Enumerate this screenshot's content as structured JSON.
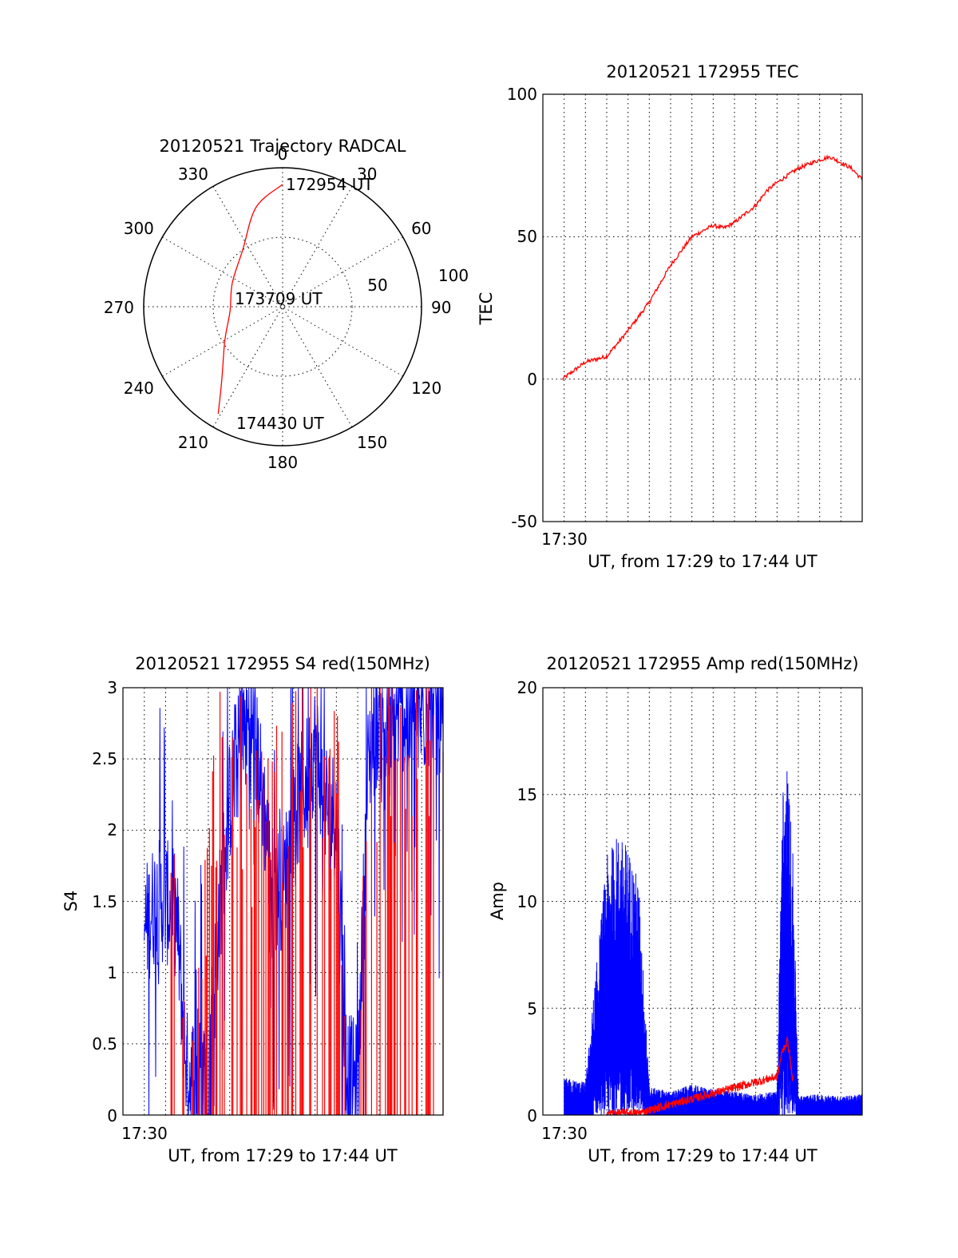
{
  "colors": {
    "primary": "#ff0000",
    "secondary": "#0000ff",
    "axis": "#000000"
  },
  "chart_data": [
    {
      "type": "polar",
      "title": "20120521 Trajectory RADCAL",
      "azimuth_labels": [
        "0",
        "30",
        "60",
        "90",
        "120",
        "150",
        "180",
        "210",
        "240",
        "270",
        "300",
        "330"
      ],
      "radial_labels": [
        "50",
        "100"
      ],
      "rlim": [
        0,
        100
      ],
      "grid": true,
      "series": [
        {
          "color": "#ff0000",
          "points": [
            {
              "az": 0,
              "r": 88
            },
            {
              "az": 345,
              "r": 74
            },
            {
              "az": 325,
              "r": 50
            },
            {
              "az": 295,
              "r": 40
            },
            {
              "az": 265,
              "r": 38
            },
            {
              "az": 240,
              "r": 48
            },
            {
              "az": 220,
              "r": 68
            },
            {
              "az": 211,
              "r": 90
            }
          ]
        }
      ],
      "annotations": [
        {
          "text": "172954 UT",
          "az": 0,
          "r": 88
        },
        {
          "text": "173709 UT",
          "az": 0,
          "r": 0
        },
        {
          "text": "174430 UT",
          "az": 211,
          "r": 90
        }
      ]
    },
    {
      "type": "line",
      "title": "20120521 172955 TEC",
      "xlabel": "UT, from 17:29 to 17:44 UT",
      "ylabel": "TEC",
      "xlim": [
        "17:29",
        "17:44"
      ],
      "ylim": [
        -50,
        100
      ],
      "yticks": [
        "-50",
        "0",
        "50",
        "100"
      ],
      "xticks": [
        "17:30"
      ],
      "grid": true,
      "series": [
        {
          "color": "#ff0000",
          "x": [
            "17:29:55",
            "17:31:00",
            "17:32:00",
            "17:33:00",
            "17:34:00",
            "17:35:00",
            "17:36:00",
            "17:37:00",
            "17:37:30",
            "17:38:00",
            "17:38:30",
            "17:39:00",
            "17:39:30",
            "17:40:00",
            "17:41:00",
            "17:42:00",
            "17:42:30",
            "17:43:00",
            "17:43:30",
            "17:44:00"
          ],
          "values": [
            0,
            6,
            8,
            17,
            27,
            40,
            50,
            54,
            53,
            55,
            58,
            61,
            66,
            69,
            74,
            77,
            78,
            76,
            74,
            70
          ]
        }
      ]
    },
    {
      "type": "line",
      "title": "20120521 172955 S4 red(150MHz)",
      "xlabel": "UT, from 17:29 to 17:44 UT",
      "ylabel": "S4",
      "xlim": [
        "17:29",
        "17:44"
      ],
      "ylim": [
        0,
        3
      ],
      "yticks": [
        "0",
        "0.5",
        "1",
        "1.5",
        "2",
        "2.5",
        "3"
      ],
      "xticks": [
        "17:30"
      ],
      "grid": true,
      "series": [
        {
          "color": "#0000ff",
          "x": [
            "17:30:00",
            "17:30:30",
            "17:31:00",
            "17:31:30",
            "17:32:00",
            "17:32:30",
            "17:33:00",
            "17:33:30",
            "17:34:00",
            "17:34:30",
            "17:35:00",
            "17:35:30",
            "17:36:00",
            "17:36:30",
            "17:37:00",
            "17:37:30",
            "17:38:00",
            "17:38:30",
            "17:39:00",
            "17:39:30",
            "17:40:00",
            "17:40:30",
            "17:41:00",
            "17:41:30",
            "17:42:00",
            "17:42:30",
            "17:43:00",
            "17:43:30",
            "17:44:00"
          ],
          "values": [
            1.3,
            1.5,
            1.5,
            1.4,
            0.3,
            0.25,
            0.27,
            1.4,
            2.2,
            2.6,
            2.8,
            2.3,
            1.6,
            1.6,
            2.1,
            2.3,
            2.6,
            2.2,
            2.1,
            0.3,
            0.2,
            2.5,
            2.8,
            2.6,
            2.9,
            2.7,
            2.8,
            2.9,
            2.6
          ]
        },
        {
          "color": "#ff0000",
          "x": [
            "17:31:00",
            "17:31:30",
            "17:32:00",
            "17:33:30",
            "17:34:00",
            "17:34:30",
            "17:35:00",
            "17:35:30",
            "17:36:00",
            "17:36:30",
            "17:37:00",
            "17:37:30",
            "17:38:00",
            "17:38:30",
            "17:39:00",
            "17:39:30",
            "17:40:00",
            "17:40:30",
            "17:41:00",
            "17:41:30",
            "17:42:00",
            "17:42:30",
            "17:43:00",
            "17:43:30",
            "17:44:00"
          ],
          "values": [
            1.2,
            2.4,
            0.3,
            2.9,
            2.7,
            3.0,
            2.0,
            2.8,
            3.0,
            2.4,
            2.7,
            3.0,
            3.0,
            2.3,
            3.0,
            0.15,
            0.2,
            2.9,
            3.0,
            2.8,
            3.0,
            2.9,
            3.0,
            2.8,
            3.0
          ]
        }
      ]
    },
    {
      "type": "line",
      "title": "20120521 172955 Amp red(150MHz)",
      "xlabel": "UT, from 17:29 to 17:44 UT",
      "ylabel": "Amp",
      "xlim": [
        "17:29",
        "17:44"
      ],
      "ylim": [
        0,
        20
      ],
      "yticks": [
        "0",
        "5",
        "10",
        "15",
        "20"
      ],
      "xticks": [
        "17:30"
      ],
      "grid": true,
      "series": [
        {
          "color": "#0000ff",
          "x": [
            "17:30:00",
            "17:31:00",
            "17:32:00",
            "17:32:30",
            "17:33:00",
            "17:33:30",
            "17:34:00",
            "17:35:00",
            "17:36:00",
            "17:37:00",
            "17:38:00",
            "17:39:00",
            "17:40:00",
            "17:40:15",
            "17:40:30",
            "17:40:45",
            "17:41:00",
            "17:42:00",
            "17:43:00",
            "17:44:00"
          ],
          "values": [
            1.6,
            1.4,
            11,
            12,
            11.5,
            10,
            1.2,
            1.0,
            1.3,
            1.1,
            1.0,
            0.9,
            1.0,
            14,
            15,
            11,
            0.8,
            0.9,
            0.8,
            0.9
          ]
        },
        {
          "color": "#ff0000",
          "x": [
            "17:32:00",
            "17:33:00",
            "17:33:30",
            "17:40:00",
            "17:40:15",
            "17:40:30",
            "17:40:45"
          ],
          "values": [
            0.1,
            0.1,
            0.1,
            1.8,
            3.0,
            3.5,
            1.5
          ]
        }
      ]
    }
  ]
}
